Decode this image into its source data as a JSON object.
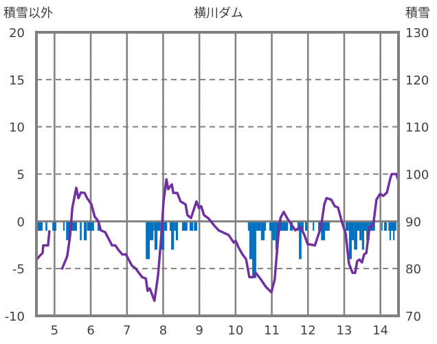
{
  "chart_data": {
    "type": "bar+line",
    "title": "横川ダム",
    "left_axis_label": "積雪以外",
    "right_axis_label": "積雪",
    "left_ylim": [
      -10,
      20
    ],
    "right_ylim": [
      70,
      130
    ],
    "left_ticks": [
      "20",
      "15",
      "10",
      "5",
      "0",
      "-5",
      "-10"
    ],
    "right_ticks": [
      "130",
      "120",
      "110",
      "100",
      "90",
      "80",
      "70"
    ],
    "x_ticks": [
      "5",
      "6",
      "7",
      "8",
      "9",
      "10",
      "11",
      "12",
      "13",
      "14"
    ],
    "xlim": [
      4.5,
      14.5
    ],
    "colors": {
      "bars": "#0070C0",
      "line": "#7030A0",
      "grid": "#808080"
    },
    "bars": {
      "name": "積雪以外",
      "axis": "left",
      "spans": [
        [
          4.52,
          4.67,
          -1
        ],
        [
          4.75,
          4.8,
          -1
        ],
        [
          4.94,
          5.05,
          -1
        ],
        [
          5.24,
          5.28,
          -1
        ],
        [
          5.32,
          5.45,
          -2
        ],
        [
          5.45,
          5.62,
          -1
        ],
        [
          5.7,
          5.75,
          -2
        ],
        [
          5.81,
          5.89,
          -2
        ],
        [
          5.9,
          6.09,
          -1
        ],
        [
          6.19,
          6.25,
          -1
        ],
        [
          7.52,
          7.63,
          -4
        ],
        [
          7.63,
          7.73,
          -2
        ],
        [
          7.73,
          7.76,
          -1
        ],
        [
          7.76,
          7.84,
          -3
        ],
        [
          7.84,
          7.92,
          -1
        ],
        [
          7.92,
          8.03,
          -3
        ],
        [
          8.03,
          8.11,
          -1
        ],
        [
          8.18,
          8.22,
          -1
        ],
        [
          8.22,
          8.3,
          -3
        ],
        [
          8.3,
          8.35,
          -1
        ],
        [
          8.35,
          8.41,
          -2
        ],
        [
          8.52,
          8.67,
          -1
        ],
        [
          8.73,
          8.83,
          -1
        ],
        [
          8.85,
          8.94,
          -1
        ],
        [
          10.34,
          10.38,
          -1
        ],
        [
          10.38,
          10.46,
          -4
        ],
        [
          10.46,
          10.57,
          -6
        ],
        [
          10.57,
          10.7,
          -1
        ],
        [
          10.7,
          10.8,
          -2
        ],
        [
          10.8,
          10.84,
          -1
        ],
        [
          10.93,
          11.01,
          -1
        ],
        [
          11.01,
          11.1,
          -2
        ],
        [
          11.1,
          11.18,
          -3
        ],
        [
          11.18,
          11.45,
          -1
        ],
        [
          11.5,
          11.58,
          -1
        ],
        [
          11.71,
          11.75,
          -1
        ],
        [
          11.75,
          11.82,
          -4
        ],
        [
          11.82,
          11.88,
          -1
        ],
        [
          11.92,
          11.98,
          -1
        ],
        [
          12.13,
          12.17,
          -1
        ],
        [
          12.28,
          12.36,
          -1
        ],
        [
          12.36,
          12.47,
          -2
        ],
        [
          12.47,
          12.6,
          -1
        ],
        [
          13.04,
          13.13,
          -1
        ],
        [
          13.13,
          13.21,
          -4
        ],
        [
          13.21,
          13.27,
          -2
        ],
        [
          13.27,
          13.36,
          -3
        ],
        [
          13.36,
          13.42,
          -1
        ],
        [
          13.42,
          13.49,
          -2
        ],
        [
          13.49,
          13.55,
          -3
        ],
        [
          13.55,
          13.61,
          -1
        ],
        [
          13.61,
          13.7,
          -2
        ],
        [
          13.7,
          13.85,
          -1
        ],
        [
          14.03,
          14.06,
          -1
        ],
        [
          14.1,
          14.18,
          -1
        ],
        [
          14.22,
          14.44,
          -1
        ],
        [
          14.25,
          14.29,
          -2
        ],
        [
          14.35,
          14.39,
          -2
        ]
      ]
    },
    "line": {
      "name": "積雪",
      "axis": "right",
      "points": [
        [
          4.52,
          82.0
        ],
        [
          4.58,
          82.6
        ],
        [
          4.67,
          83.3
        ],
        [
          4.69,
          84.9
        ],
        [
          4.82,
          84.9
        ],
        [
          4.86,
          88.1
        ],
        null,
        [
          5.2,
          79.8
        ],
        [
          5.35,
          82.6
        ],
        [
          5.43,
          86.9
        ],
        [
          5.49,
          92.8
        ],
        [
          5.6,
          97.1
        ],
        [
          5.66,
          94.9
        ],
        [
          5.73,
          96.1
        ],
        [
          5.83,
          96.0
        ],
        [
          5.9,
          94.9
        ],
        [
          6.02,
          93.6
        ],
        [
          6.11,
          91.0
        ],
        [
          6.21,
          90.0
        ],
        [
          6.28,
          88.1
        ],
        [
          6.4,
          87.7
        ],
        [
          6.59,
          84.9
        ],
        [
          6.68,
          84.9
        ],
        [
          6.76,
          84.0
        ],
        [
          6.87,
          83.0
        ],
        [
          6.97,
          83.0
        ],
        [
          7.14,
          80.6
        ],
        [
          7.23,
          80.1
        ],
        [
          7.33,
          79.1
        ],
        [
          7.42,
          78.2
        ],
        [
          7.52,
          77.9
        ],
        [
          7.57,
          75.3
        ],
        [
          7.63,
          75.8
        ],
        [
          7.76,
          73.2
        ],
        [
          7.86,
          78.7
        ],
        [
          7.95,
          86.9
        ],
        [
          8.01,
          94.2
        ],
        [
          8.09,
          98.9
        ],
        [
          8.14,
          96.8
        ],
        [
          8.24,
          97.8
        ],
        [
          8.28,
          96.0
        ],
        [
          8.39,
          96.0
        ],
        [
          8.48,
          94.2
        ],
        [
          8.62,
          93.6
        ],
        [
          8.67,
          91.3
        ],
        [
          8.77,
          90.7
        ],
        [
          8.92,
          94.2
        ],
        [
          8.99,
          92.8
        ],
        [
          9.05,
          93.2
        ],
        [
          9.13,
          91.3
        ],
        [
          9.24,
          90.7
        ],
        [
          9.32,
          90.0
        ],
        [
          9.41,
          89.1
        ],
        [
          9.53,
          88.1
        ],
        [
          9.81,
          87.1
        ],
        [
          9.95,
          85.5
        ],
        [
          10.0,
          85.9
        ],
        [
          10.08,
          84.5
        ],
        [
          10.19,
          83.0
        ],
        [
          10.29,
          82.0
        ],
        [
          10.38,
          78.2
        ],
        [
          10.48,
          78.2
        ],
        [
          10.57,
          79.0
        ],
        [
          10.7,
          77.7
        ],
        [
          10.84,
          76.1
        ],
        [
          10.99,
          75.0
        ],
        [
          11.08,
          77.7
        ],
        [
          11.18,
          86.9
        ],
        [
          11.24,
          90.7
        ],
        [
          11.33,
          92.0
        ],
        [
          11.43,
          90.6
        ],
        [
          11.56,
          89.1
        ],
        [
          11.65,
          88.1
        ],
        [
          11.79,
          88.8
        ],
        [
          11.9,
          87.1
        ],
        [
          11.99,
          85.2
        ],
        [
          12.19,
          84.9
        ],
        [
          12.36,
          88.8
        ],
        [
          12.45,
          93.6
        ],
        [
          12.51,
          94.9
        ],
        [
          12.64,
          94.6
        ],
        [
          12.74,
          93.2
        ],
        [
          12.83,
          92.9
        ],
        [
          12.93,
          90.0
        ],
        [
          13.04,
          87.4
        ],
        [
          13.13,
          81.1
        ],
        [
          13.23,
          79.1
        ],
        [
          13.3,
          79.1
        ],
        [
          13.36,
          81.6
        ],
        [
          13.42,
          81.9
        ],
        [
          13.49,
          81.3
        ],
        [
          13.55,
          83.0
        ],
        [
          13.61,
          83.3
        ],
        [
          13.7,
          88.8
        ],
        [
          13.8,
          89.1
        ],
        [
          13.89,
          94.6
        ],
        [
          13.99,
          95.8
        ],
        [
          14.08,
          95.4
        ],
        [
          14.18,
          96.1
        ],
        [
          14.27,
          99.0
        ],
        [
          14.31,
          100.0
        ],
        [
          14.44,
          100.0
        ],
        [
          14.48,
          99.0
        ]
      ]
    }
  }
}
